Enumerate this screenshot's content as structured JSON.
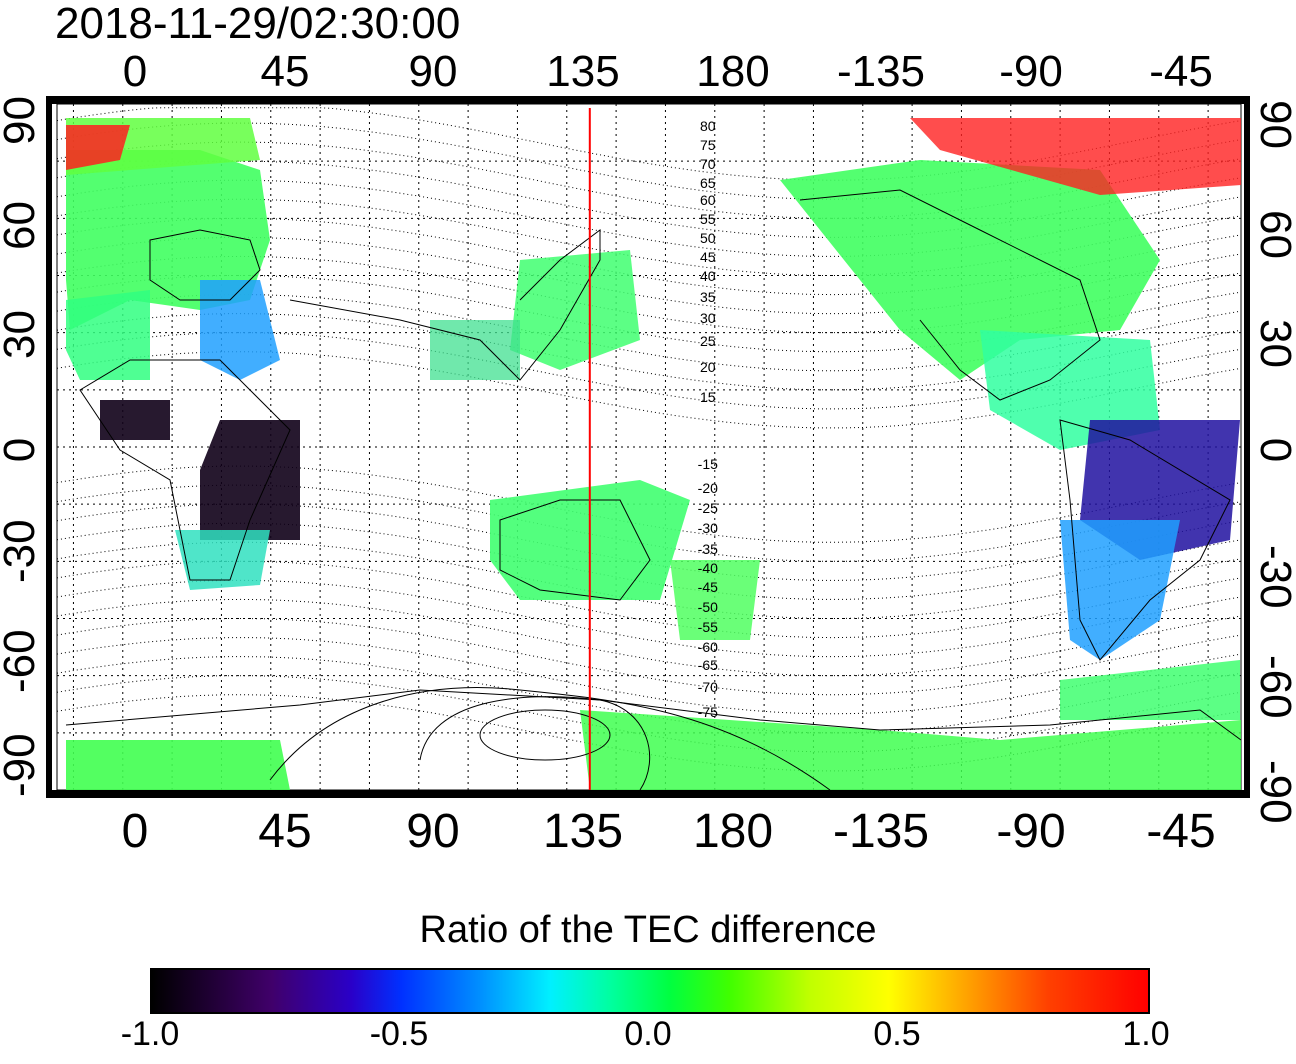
{
  "header": {
    "timestamp": "2018-11-29/02:30:00"
  },
  "map": {
    "top_lon_ticks": [
      "0",
      "45",
      "90",
      "135",
      "180",
      "-135",
      "-90",
      "-45"
    ],
    "bottom_lon_ticks": [
      "0",
      "45",
      "90",
      "135",
      "180",
      "-135",
      "-90",
      "-45"
    ],
    "left_lat_ticks": [
      "90",
      "60",
      "30",
      "0",
      "-30",
      "-60",
      "-90"
    ],
    "right_lat_ticks": [
      "90",
      "60",
      "30",
      "0",
      "-30",
      "-60",
      "-90"
    ],
    "magnetic_latitude_labels_north": [
      "80",
      "75",
      "70",
      "65",
      "60",
      "55",
      "50",
      "45",
      "40",
      "35",
      "30",
      "25",
      "20",
      "15"
    ],
    "magnetic_latitude_labels_south": [
      "-15",
      "-20",
      "-25",
      "-30",
      "-35",
      "-40",
      "-45",
      "-50",
      "-55",
      "-60",
      "-65",
      "-70",
      "-75"
    ],
    "meridian_marker_color": "#ff0000",
    "meridian_marker_lon": 142
  },
  "colorbar": {
    "title": "Ratio of the TEC difference",
    "tick_labels": [
      "-1.0",
      "-0.5",
      "0.0",
      "0.5",
      "1.0"
    ],
    "range": [
      -1.0,
      1.0
    ]
  }
}
